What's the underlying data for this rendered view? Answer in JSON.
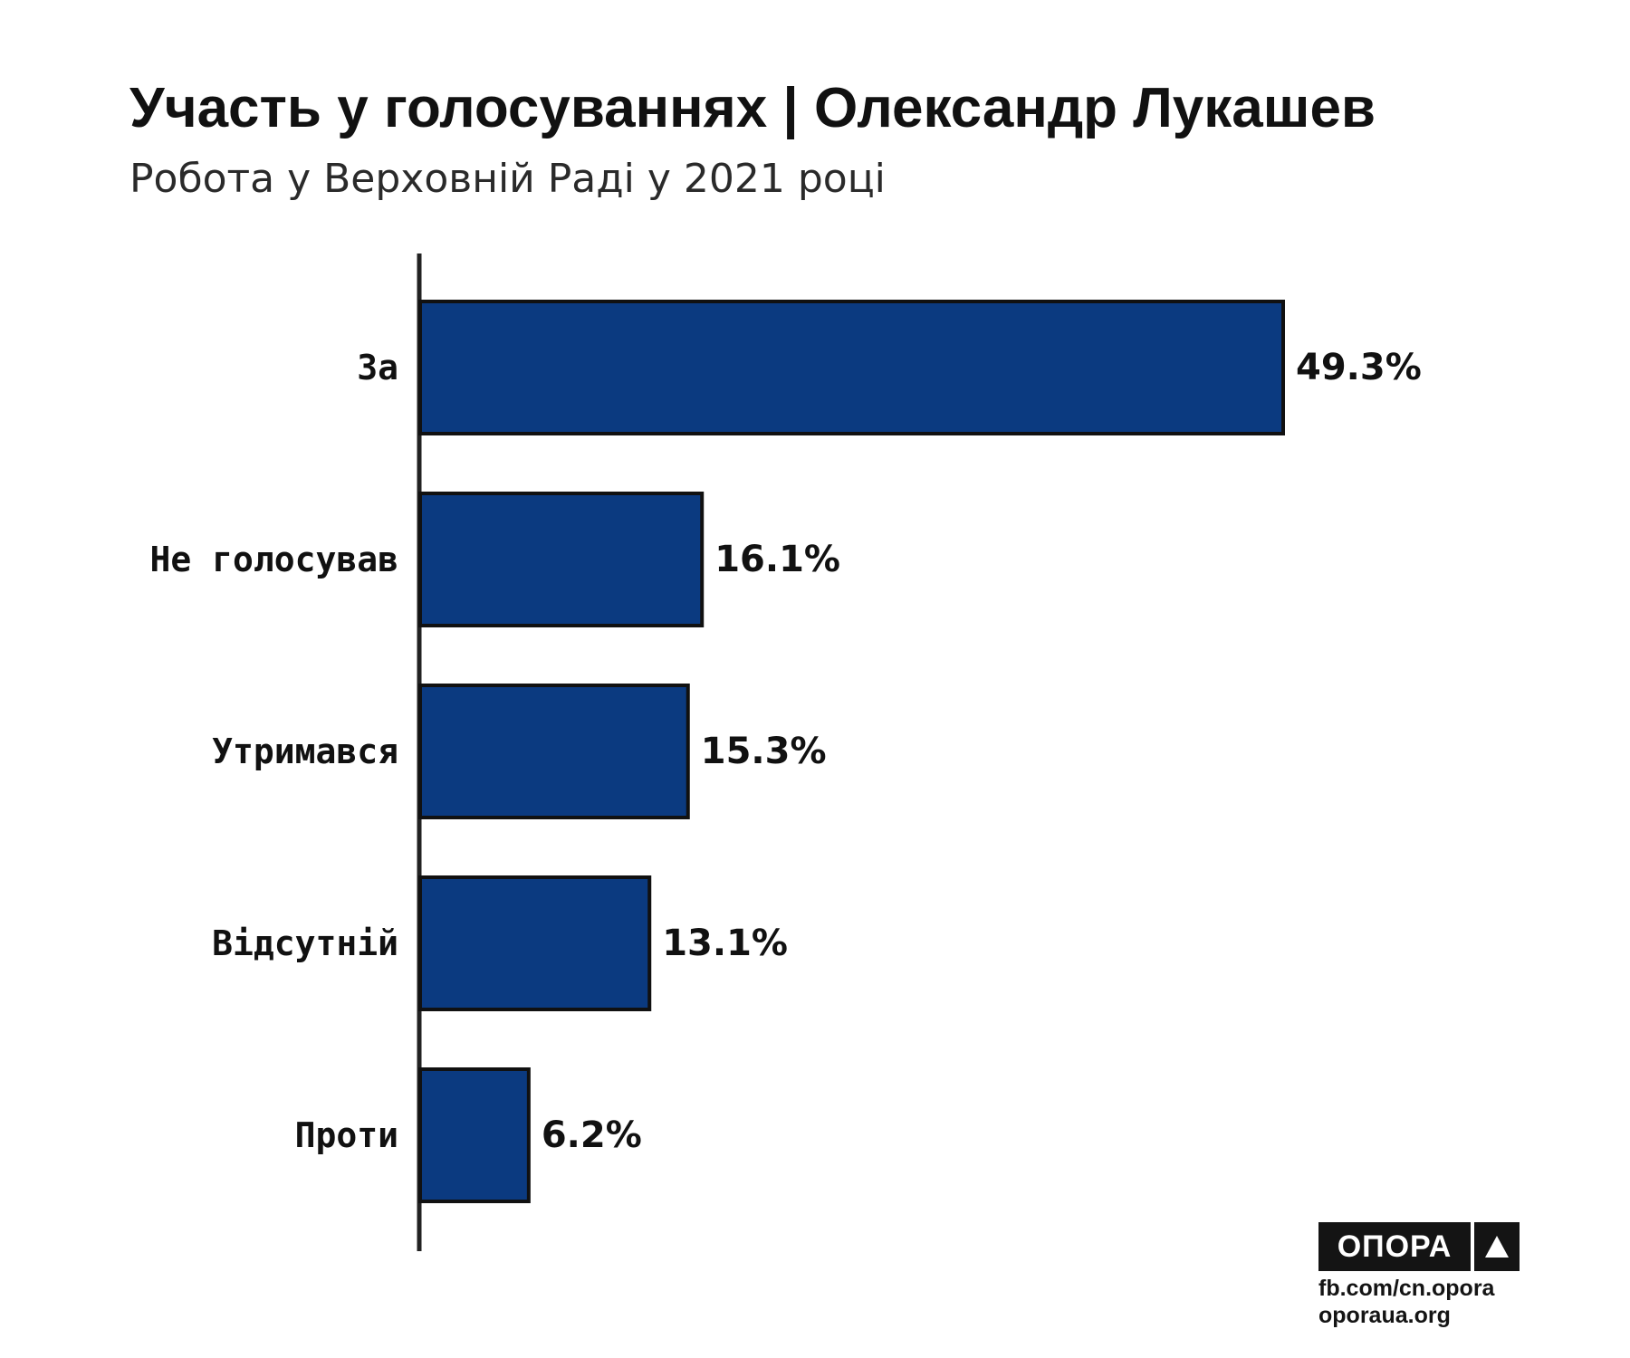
{
  "header": {
    "title": "Участь у голосуваннях | Олександр Лукашев",
    "subtitle": "Робота у Верховній Раді у 2021 році"
  },
  "chart_data": {
    "type": "bar",
    "orientation": "horizontal",
    "categories": [
      "За",
      "Не голосував",
      "Утримався",
      "Відсутній",
      "Проти"
    ],
    "values": [
      49.3,
      16.1,
      15.3,
      13.1,
      6.2
    ],
    "value_labels": [
      "49.3%",
      "16.1%",
      "15.3%",
      "13.1%",
      "6.2%"
    ],
    "unit": "%",
    "title": "Участь у голосуваннях | Олександр Лукашев",
    "subtitle": "Робота у Верховній Раді у 2021 році",
    "xlim": [
      0,
      49.3
    ],
    "grid": false,
    "legend": "none",
    "colors": {
      "bar_fill": "#0b3a80",
      "bar_stroke": "#111111",
      "axis": "#222222"
    }
  },
  "branding": {
    "logo_text": "ОПОРА",
    "links": [
      "fb.com/cn.opora",
      "oporaua.org"
    ]
  }
}
